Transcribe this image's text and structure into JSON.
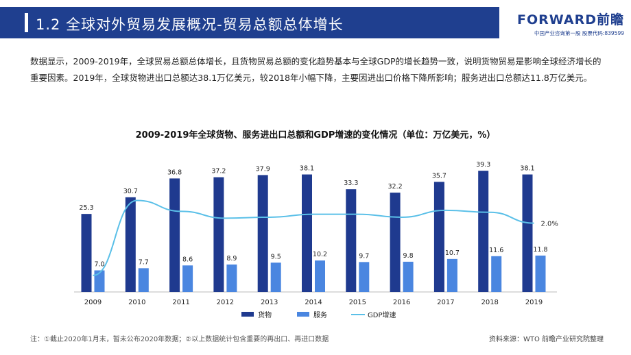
{
  "header": {
    "title": "1.2 全球对外贸易发展概况-贸易总额总体增长",
    "logo_brand": "FORWARD前瞻",
    "logo_sub": "中国产业咨询第一股 股票代码:839599"
  },
  "body_text": "数据显示，2009-2019年，全球贸易总额总体增长，且货物贸易总额的变化趋势基本与全球GDP的增长趋势一致，说明货物贸易是影响全球经济增长的重要因素。2019年，全球货物进出口总额达38.1万亿美元，较2018年小幅下降，主要因进出口价格下降所影响；服务进出口总额达11.8万亿美元。",
  "chart_data": {
    "type": "bar",
    "title": "2009-2019年全球货物、服务进出口总额和GDP增速的变化情况（单位：万亿美元，%）",
    "categories": [
      "2009",
      "2010",
      "2011",
      "2012",
      "2013",
      "2014",
      "2015",
      "2016",
      "2017",
      "2018",
      "2019"
    ],
    "series": [
      {
        "name": "货物",
        "kind": "bar",
        "color": "#1f3a8f",
        "values": [
          25.3,
          30.7,
          36.8,
          37.2,
          37.9,
          38.1,
          33.3,
          32.2,
          35.7,
          39.3,
          38.1
        ]
      },
      {
        "name": "服务",
        "kind": "bar",
        "color": "#4a86e0",
        "values": [
          7.0,
          7.7,
          8.6,
          8.9,
          9.5,
          10.2,
          9.7,
          9.8,
          10.7,
          11.6,
          11.8
        ]
      },
      {
        "name": "GDP增速",
        "kind": "line",
        "color": "#5bc0e8",
        "values": [
          -3.3,
          4.3,
          3.2,
          2.5,
          2.6,
          2.9,
          2.9,
          2.6,
          3.3,
          3.1,
          2.0
        ]
      }
    ],
    "labels": [
      "25.3",
      "30.7",
      "36.8",
      "37.2",
      "37.9",
      "38.1",
      "33.3",
      "32.2",
      "35.7",
      "39.3",
      "38.1"
    ],
    "service_labels": [
      "7.0",
      "7.7",
      "8.6",
      "8.9",
      "9.5",
      "10.2",
      "9.7",
      "9.8",
      "10.7",
      "11.6",
      "11.8"
    ],
    "line_end_label": "2.0%",
    "ylim": [
      0,
      40
    ],
    "line_ylim": [
      -4,
      6
    ],
    "legend": [
      "货物",
      "服务",
      "GDP增速"
    ],
    "legend_position": "bottom-center"
  },
  "footer": {
    "note": "注：①截止2020年1月末，暂未公布2020年数据；②以上数据统计包含重要的再出口、再进口数据",
    "source": "资料来源：WTO 前瞻产业研究院整理"
  }
}
